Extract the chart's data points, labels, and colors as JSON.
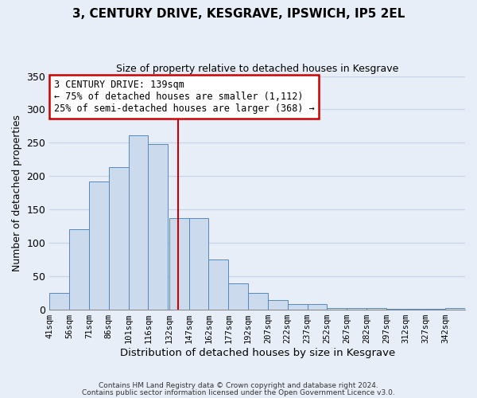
{
  "title": "3, CENTURY DRIVE, KESGRAVE, IPSWICH, IP5 2EL",
  "subtitle": "Size of property relative to detached houses in Kesgrave",
  "xlabel": "Distribution of detached houses by size in Kesgrave",
  "ylabel": "Number of detached properties",
  "bin_labels": [
    "41sqm",
    "56sqm",
    "71sqm",
    "86sqm",
    "101sqm",
    "116sqm",
    "132sqm",
    "147sqm",
    "162sqm",
    "177sqm",
    "192sqm",
    "207sqm",
    "222sqm",
    "237sqm",
    "252sqm",
    "267sqm",
    "282sqm",
    "297sqm",
    "312sqm",
    "327sqm",
    "342sqm"
  ],
  "bin_edges": [
    41,
    56,
    71,
    86,
    101,
    116,
    132,
    147,
    162,
    177,
    192,
    207,
    222,
    237,
    252,
    267,
    282,
    297,
    312,
    327,
    342,
    357
  ],
  "bar_heights": [
    25,
    120,
    192,
    214,
    261,
    248,
    137,
    137,
    75,
    40,
    25,
    15,
    8,
    8,
    3,
    3,
    2,
    1,
    1,
    1,
    2
  ],
  "bar_color": "#ccdaed",
  "bar_edge_color": "#5588bb",
  "vline_x": 139,
  "vline_color": "#cc0000",
  "annotation_text": "3 CENTURY DRIVE: 139sqm\n← 75% of detached houses are smaller (1,112)\n25% of semi-detached houses are larger (368) →",
  "annotation_box_color": "#ffffff",
  "annotation_box_edge_color": "#cc0000",
  "ylim": [
    0,
    350
  ],
  "yticks": [
    0,
    50,
    100,
    150,
    200,
    250,
    300,
    350
  ],
  "footer_line1": "Contains HM Land Registry data © Crown copyright and database right 2024.",
  "footer_line2": "Contains public sector information licensed under the Open Government Licence v3.0.",
  "bg_color": "#e8eef8",
  "grid_color": "#c8d4e8"
}
